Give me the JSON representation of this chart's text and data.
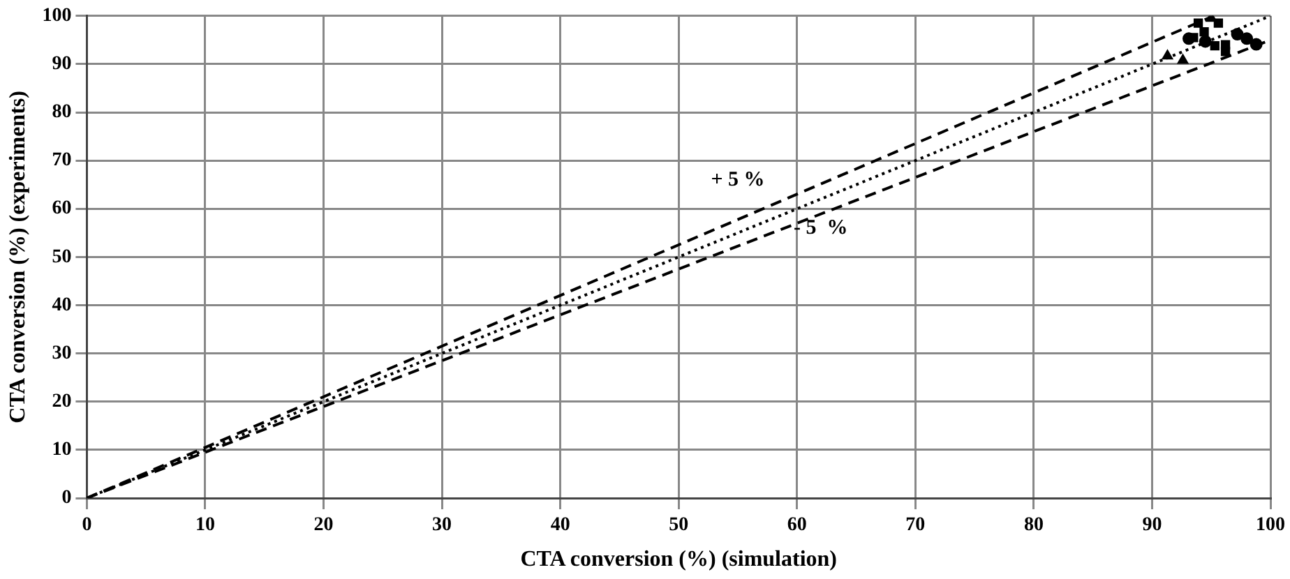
{
  "chart_data": {
    "type": "scatter",
    "xlabel": "CTA conversion (%) (simulation)",
    "ylabel": "CTA conversion (%) (experiments)",
    "xlim": [
      0,
      100
    ],
    "ylim": [
      0,
      100
    ],
    "xticks": [
      0,
      10,
      20,
      30,
      40,
      50,
      60,
      70,
      80,
      90,
      100
    ],
    "yticks": [
      0,
      10,
      20,
      30,
      40,
      50,
      60,
      70,
      80,
      90,
      100
    ],
    "grid": true,
    "legend": false,
    "series": [
      {
        "type": "line",
        "color": "#000000",
        "x": [
          0,
          95.2
        ],
        "values": [
          0,
          100
        ],
        "line_style": "dashed",
        "marker": "none"
      },
      {
        "type": "line",
        "color": "#000000",
        "x": [
          0,
          100
        ],
        "values": [
          0,
          95
        ],
        "line_style": "dashed",
        "marker": "none"
      },
      {
        "type": "line",
        "color": "#000000",
        "x": [
          0,
          100
        ],
        "values": [
          0,
          100
        ],
        "line_style": "dotted",
        "marker": "none"
      },
      {
        "color": "#000000",
        "marker": "square",
        "x": [
          93.9,
          95.6,
          93.5,
          95.3,
          96.2,
          94.4,
          96.2
        ],
        "values": [
          98.5,
          98.5,
          95.5,
          93.8,
          94,
          96.7,
          92.6
        ]
      },
      {
        "color": "#000000",
        "marker": "circle",
        "x": [
          93.1,
          94.5,
          97.2,
          98,
          98.8
        ],
        "values": [
          95.3,
          94.7,
          96.2,
          95.3,
          94.1
        ]
      },
      {
        "color": "#000000",
        "marker": "triangle",
        "x": [
          95,
          91.3,
          92.6
        ],
        "values": [
          99.5,
          91.7,
          90.8
        ]
      }
    ],
    "annotations": [
      "+ 5 %",
      "- 5  %"
    ]
  }
}
